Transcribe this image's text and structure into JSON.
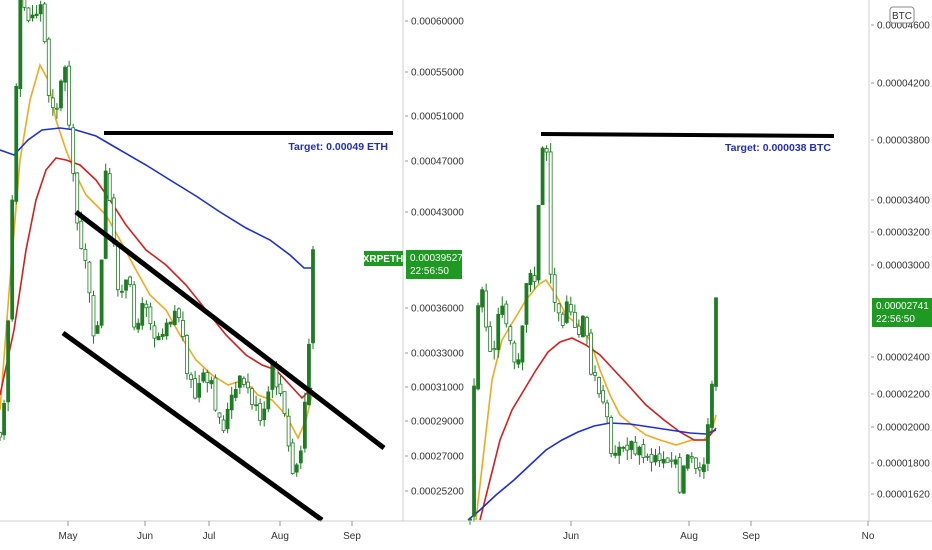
{
  "chart_data": [
    {
      "type": "candlestick",
      "symbol": "XRPETH",
      "currency": "",
      "y_ticks": [
        "0.00060000",
        "0.00055000",
        "0.00051000",
        "0.00047000",
        "0.00043000",
        "0.00039527",
        "0.00036000",
        "0.00033000",
        "0.00031000",
        "0.00029000",
        "0.00027000",
        "0.00025200"
      ],
      "y_tick_values": [
        0.0006,
        0.00055,
        0.00051,
        0.00047,
        0.00043,
        0.00039527,
        0.00036,
        0.00033,
        0.00031,
        0.00029,
        0.00027,
        0.000252
      ],
      "x_ticks": [
        "May",
        "Jun",
        "Jul",
        "Aug",
        "Sep"
      ],
      "last_price": "0.00039527",
      "countdown": "22:56:50",
      "annotation": "Target: 0.00049 ETH",
      "target_value": 0.00049,
      "series": [
        {
          "kind": "ma",
          "color": "#f2a91e"
        },
        {
          "kind": "ma",
          "color": "#d61e1e"
        },
        {
          "kind": "ma",
          "color": "#1d2fd8"
        }
      ],
      "colors": {
        "up": "#1e7d22",
        "down": "#1e7d22",
        "badge": "#1e9a22"
      }
    },
    {
      "type": "candlestick",
      "symbol": "",
      "currency": "BTC",
      "y_ticks": [
        "0.00004600",
        "0.00004200",
        "0.00003800",
        "0.00003400",
        "0.00003200",
        "0.00003000",
        "0.00002741",
        "0.00002400",
        "0.00002200",
        "0.00002000",
        "0.00001800",
        "0.00001620"
      ],
      "y_tick_values": [
        4.6e-05,
        4.2e-05,
        3.8e-05,
        3.4e-05,
        3.2e-05,
        3e-05,
        2.741e-05,
        2.4e-05,
        2.2e-05,
        2e-05,
        1.8e-05,
        1.62e-05
      ],
      "x_ticks": [
        "Jun",
        "Aug",
        "Sep",
        "No"
      ],
      "last_price": "0.00002741",
      "countdown": "22:56:50",
      "annotation": "Target: 0.000038 BTC",
      "target_value": 3.8e-05,
      "series": [
        {
          "kind": "ma",
          "color": "#f2a91e"
        },
        {
          "kind": "ma",
          "color": "#d61e1e"
        },
        {
          "kind": "ma",
          "color": "#1d2fd8"
        }
      ],
      "colors": {
        "up": "#1e7d22",
        "down": "#1e7d22",
        "badge": "#1e9a22"
      }
    }
  ]
}
